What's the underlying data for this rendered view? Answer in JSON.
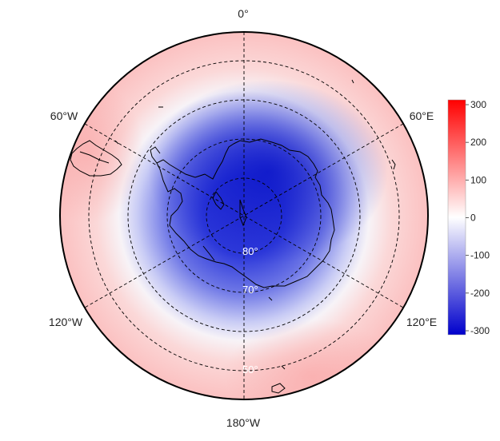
{
  "map": {
    "projection": "south-polar-stereographic",
    "longitude_labels": [
      {
        "id": "lon-0",
        "text": "0°"
      },
      {
        "id": "lon-60e",
        "text": "60°E"
      },
      {
        "id": "lon-120e",
        "text": "120°E"
      },
      {
        "id": "lon-180w",
        "text": "180°W"
      },
      {
        "id": "lon-120w",
        "text": "120°W"
      },
      {
        "id": "lon-60w",
        "text": "60°W"
      }
    ],
    "latitude_labels": [
      {
        "id": "lat-80",
        "text": "80°"
      },
      {
        "id": "lat-70",
        "text": "70°"
      },
      {
        "id": "lat-50",
        "text": "50°"
      }
    ],
    "colors": {
      "negative": "#0000cc",
      "zero": "#ffffff",
      "positive": "#ff0000",
      "coastline": "#000000",
      "graticule": "#000000"
    }
  },
  "colorbar": {
    "min": -300,
    "max": 300,
    "ticks": [
      "300",
      "200",
      "100",
      "0",
      "-100",
      "-200",
      "-300"
    ]
  }
}
